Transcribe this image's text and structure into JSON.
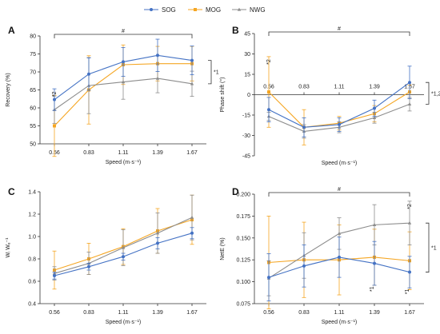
{
  "legend": {
    "items": [
      {
        "label": "SOG",
        "color": "#4472C4",
        "marker": "circle"
      },
      {
        "label": "MOG",
        "color": "#F5A623",
        "marker": "square"
      },
      {
        "label": "NWG",
        "color": "#8C8C8C",
        "marker": "triangle"
      }
    ]
  },
  "chart_data": [
    {
      "panel": "A",
      "type": "line",
      "xlabel": "Speed (m·s⁻¹)",
      "ylabel": "Recovery (%)",
      "categories": [
        "0.56",
        "0.83",
        "1.11",
        "1.39",
        "1.67"
      ],
      "ylim": [
        50,
        80
      ],
      "yticks": [
        "50",
        "55",
        "60",
        "65",
        "70",
        "75",
        "80"
      ],
      "series": [
        {
          "name": "SOG",
          "values": [
            62.3,
            69.4,
            72.8,
            74.6,
            73.2
          ],
          "err": [
            3.0,
            4.5,
            4.0,
            4.5,
            4.0
          ]
        },
        {
          "name": "MOG",
          "values": [
            55.0,
            65.0,
            72.0,
            72.3,
            72.3
          ],
          "err": [
            8.5,
            9.5,
            5.5,
            4.8,
            4.8
          ]
        },
        {
          "name": "NWG",
          "values": [
            59.5,
            66.2,
            67.2,
            68.2,
            66.7
          ],
          "err": [
            3.8,
            7.8,
            4.8,
            4.0,
            3.5
          ]
        }
      ],
      "annotations": [
        {
          "text": "#",
          "kind": "bracket-top",
          "from": 0,
          "to": 4
        },
        {
          "text": "*2",
          "kind": "near-point",
          "at": 0
        },
        {
          "text": "*1",
          "kind": "bracket-right"
        }
      ]
    },
    {
      "panel": "B",
      "type": "line",
      "xlabel": "Speed (m·s⁻¹)",
      "ylabel": "Phase shift (°)",
      "categories": [
        "0.56",
        "0.83",
        "1.11",
        "1.39",
        "1.67"
      ],
      "ylim": [
        -45,
        45
      ],
      "yticks": [
        "-45",
        "-30",
        "-15",
        "0",
        "15",
        "30",
        "45"
      ],
      "series": [
        {
          "name": "SOG",
          "values": [
            -11,
            -24,
            -22,
            -10,
            9
          ],
          "err": [
            9,
            7,
            5,
            6,
            12
          ]
        },
        {
          "name": "MOG",
          "values": [
            2,
            -24,
            -21,
            -14,
            2
          ],
          "err": [
            26,
            13,
            5,
            6,
            5
          ]
        },
        {
          "name": "NWG",
          "values": [
            -16,
            -27,
            -24,
            -17,
            -7
          ],
          "err": [
            3,
            5,
            4,
            4,
            5
          ]
        }
      ],
      "annotations": [
        {
          "text": "#",
          "kind": "bracket-top",
          "from": 0,
          "to": 4
        },
        {
          "text": "*2",
          "kind": "near-point",
          "at": 0
        },
        {
          "text": "*1,2",
          "kind": "bracket-right"
        }
      ]
    },
    {
      "panel": "C",
      "type": "line",
      "xlabel": "Speed (m·s⁻¹)",
      "ylabel": "Wᵢ Wₑ⁻¹",
      "categories": [
        "0.56",
        "0.83",
        "1.11",
        "1.39",
        "1.67"
      ],
      "ylim": [
        0.4,
        1.4
      ],
      "yticks": [
        "0.4",
        "0.6",
        "0.8",
        "1.0",
        "1.2",
        "1.4"
      ],
      "series": [
        {
          "name": "SOG",
          "values": [
            0.65,
            0.73,
            0.82,
            0.94,
            1.03
          ],
          "err": [
            0.03,
            0.03,
            0.03,
            0.05,
            0.05
          ]
        },
        {
          "name": "MOG",
          "values": [
            0.7,
            0.8,
            0.91,
            1.05,
            1.15
          ],
          "err": [
            0.17,
            0.14,
            0.16,
            0.2,
            0.22
          ]
        },
        {
          "name": "NWG",
          "values": [
            0.67,
            0.76,
            0.9,
            1.03,
            1.17
          ],
          "err": [
            0.06,
            0.1,
            0.16,
            0.18,
            0.2
          ]
        }
      ]
    },
    {
      "panel": "D",
      "type": "line",
      "xlabel": "Speed (m·s⁻¹)",
      "ylabel": "NetE (%)",
      "categories": [
        "0.56",
        "0.83",
        "1.11",
        "1.39",
        "1.67"
      ],
      "ylim": [
        0.075,
        0.2
      ],
      "yticks": [
        "0.075",
        "0.100",
        "0.125",
        "0.150",
        "0.175",
        "0.200"
      ],
      "series": [
        {
          "name": "SOG",
          "values": [
            0.105,
            0.118,
            0.128,
            0.121,
            0.111
          ],
          "err": [
            0.027,
            0.024,
            0.023,
            0.025,
            0.018
          ]
        },
        {
          "name": "MOG",
          "values": [
            0.122,
            0.125,
            0.125,
            0.128,
            0.124
          ],
          "err": [
            0.053,
            0.043,
            0.04,
            0.032,
            0.033
          ]
        },
        {
          "name": "NWG",
          "values": [
            0.104,
            0.13,
            0.155,
            0.165,
            0.167
          ],
          "err": [
            0.02,
            0.026,
            0.018,
            0.023,
            0.025
          ]
        }
      ],
      "annotations": [
        {
          "text": "#",
          "kind": "bracket-top",
          "from": 0,
          "to": 4
        },
        {
          "text": "*1",
          "kind": "below-point",
          "at": 3
        },
        {
          "text": "*1",
          "kind": "below-point",
          "at": 4
        },
        {
          "text": "*2",
          "kind": "near-point",
          "at": 4
        },
        {
          "text": "*1",
          "kind": "bracket-right"
        }
      ]
    }
  ]
}
